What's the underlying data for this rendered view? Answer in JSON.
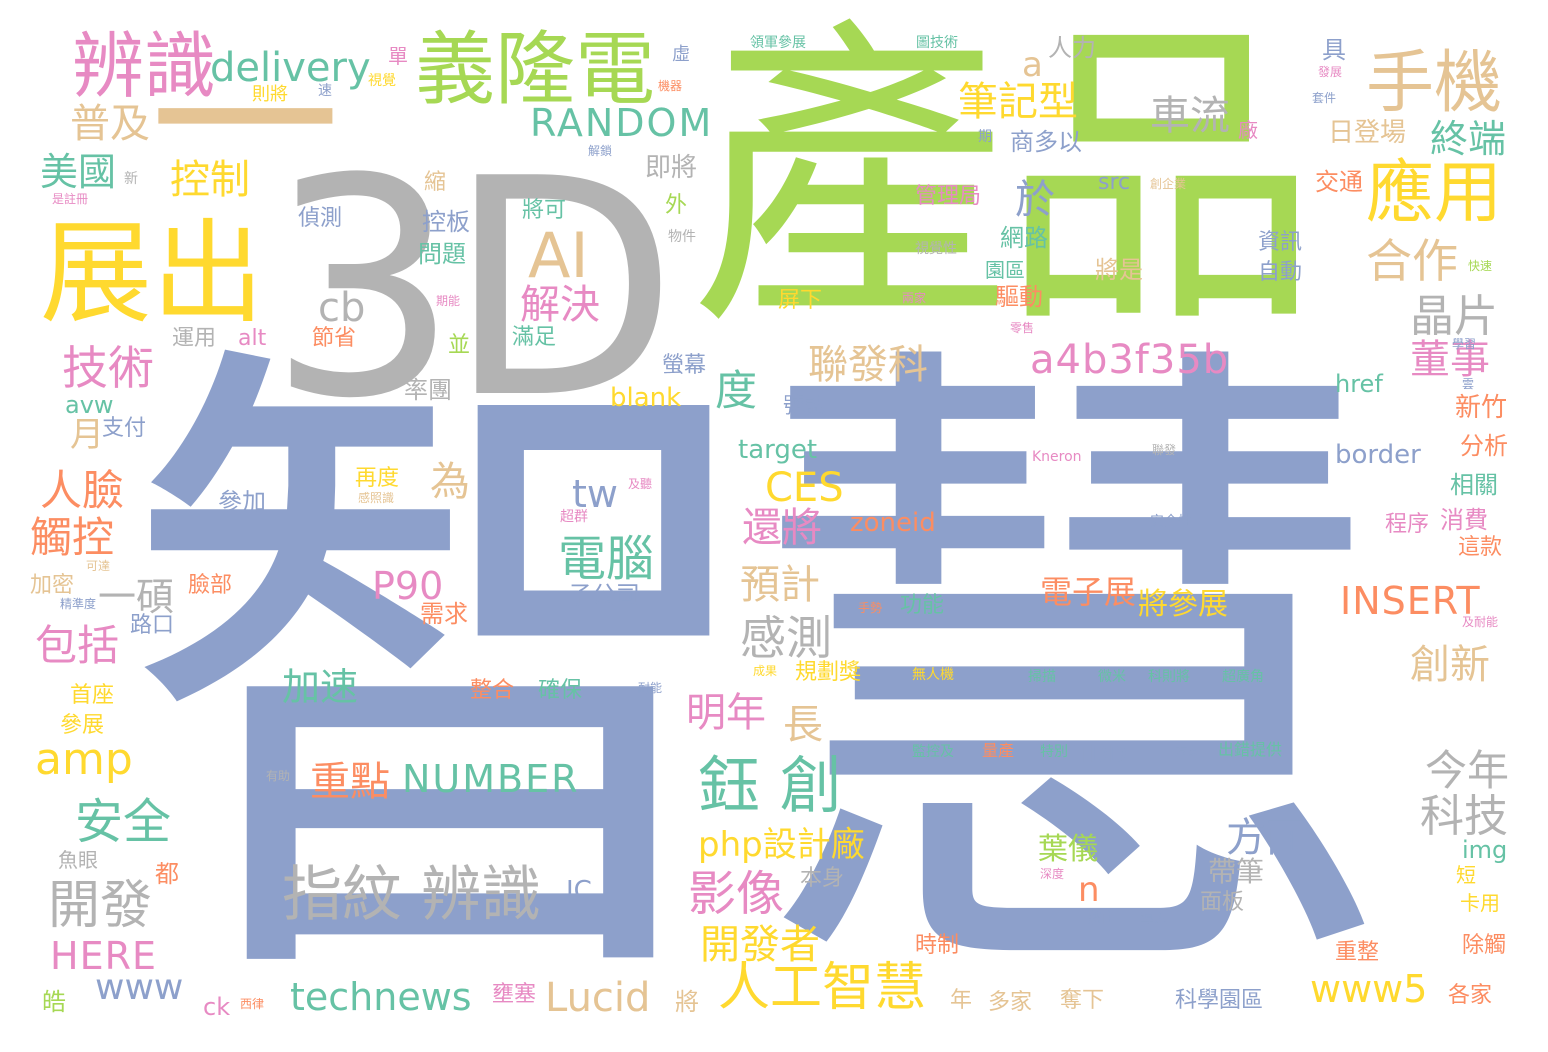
{
  "colors": {
    "slate": "#8da0cb",
    "green": "#a6d854",
    "orange": "#fc8d62",
    "pink": "#e78ac3",
    "yellow": "#ffd92f",
    "tan": "#e5c494",
    "teal": "#66c2a5",
    "gray": "#b3b3b3"
  },
  "words": [
    {
      "text": "智慧",
      "color": "slate"
    },
    {
      "text": "產品",
      "color": "green"
    },
    {
      "text": "3D",
      "color": "gray"
    },
    {
      "text": "一",
      "color": "tan"
    },
    {
      "text": "展出",
      "color": "yellow"
    },
    {
      "text": "義隆電",
      "color": "green"
    },
    {
      "text": "辨識",
      "color": "pink"
    },
    {
      "text": "手機",
      "color": "tan"
    },
    {
      "text": "應用",
      "color": "yellow"
    },
    {
      "text": "AI",
      "color": "tan"
    },
    {
      "text": "delivery",
      "color": "teal"
    },
    {
      "text": "RANDOM",
      "color": "teal"
    },
    {
      "text": "普及",
      "color": "tan"
    },
    {
      "text": "美國",
      "color": "teal"
    },
    {
      "text": "控制",
      "color": "yellow"
    },
    {
      "text": "技術",
      "color": "pink"
    },
    {
      "text": "筆記型",
      "color": "yellow"
    },
    {
      "text": "車流",
      "color": "gray"
    },
    {
      "text": "終端",
      "color": "teal"
    },
    {
      "text": "合作",
      "color": "tan"
    },
    {
      "text": "晶片",
      "color": "gray"
    },
    {
      "text": "cb",
      "color": "gray"
    },
    {
      "text": "於",
      "color": "slate"
    },
    {
      "text": "解決",
      "color": "pink"
    },
    {
      "text": "聯發科",
      "color": "tan"
    },
    {
      "text": "a4b3f35b",
      "color": "pink"
    },
    {
      "text": "董事",
      "color": "pink"
    },
    {
      "text": "度",
      "color": "teal"
    },
    {
      "text": "人臉",
      "color": "orange"
    },
    {
      "text": "觸控",
      "color": "orange"
    },
    {
      "text": "為",
      "color": "tan"
    },
    {
      "text": "CES",
      "color": "yellow"
    },
    {
      "text": "還將",
      "color": "pink"
    },
    {
      "text": "電腦",
      "color": "teal"
    },
    {
      "text": "tw",
      "color": "slate"
    },
    {
      "text": "預計",
      "color": "tan"
    },
    {
      "text": "P90",
      "color": "pink"
    },
    {
      "text": "一碩",
      "color": "gray"
    },
    {
      "text": "包括",
      "color": "pink"
    },
    {
      "text": "感測",
      "color": "gray"
    },
    {
      "text": "電子展",
      "color": "orange"
    },
    {
      "text": "將參展",
      "color": "yellow"
    },
    {
      "text": "INSERT",
      "color": "orange"
    },
    {
      "text": "加速",
      "color": "teal"
    },
    {
      "text": "創新",
      "color": "tan"
    },
    {
      "text": "明年",
      "color": "pink"
    },
    {
      "text": "amp",
      "color": "yellow"
    },
    {
      "text": "安全",
      "color": "teal"
    },
    {
      "text": "重點",
      "color": "orange"
    },
    {
      "text": "NUMBER",
      "color": "teal"
    },
    {
      "text": "鈺 創",
      "color": "teal"
    },
    {
      "text": "今年",
      "color": "gray"
    },
    {
      "text": "科技",
      "color": "gray"
    },
    {
      "text": "開發",
      "color": "gray"
    },
    {
      "text": "指紋 辨識",
      "color": "gray"
    },
    {
      "text": "php設計廠",
      "color": "yellow"
    },
    {
      "text": "影像",
      "color": "pink"
    },
    {
      "text": "方面",
      "color": "slate"
    },
    {
      "text": "HERE",
      "color": "pink"
    },
    {
      "text": "開發者",
      "color": "yellow"
    },
    {
      "text": "www",
      "color": "slate"
    },
    {
      "text": "technews",
      "color": "teal"
    },
    {
      "text": "Lucid",
      "color": "tan"
    },
    {
      "text": "人工智慧",
      "color": "yellow"
    },
    {
      "text": "www5",
      "color": "yellow"
    },
    {
      "text": "長",
      "color": "tan"
    },
    {
      "text": "月",
      "color": "tan"
    },
    {
      "text": "n",
      "color": "orange"
    },
    {
      "text": "葉儀",
      "color": "green"
    },
    {
      "text": "帶筆",
      "color": "gray"
    },
    {
      "text": "IC",
      "color": "slate"
    },
    {
      "text": "a",
      "color": "tan"
    },
    {
      "text": "blank",
      "color": "yellow"
    },
    {
      "text": "target",
      "color": "teal"
    },
    {
      "text": "zoneid",
      "color": "orange"
    },
    {
      "text": "border",
      "color": "slate"
    },
    {
      "text": "href",
      "color": "teal"
    },
    {
      "text": "TDDI",
      "color": "slate"
    },
    {
      "text": "avw",
      "color": "teal"
    },
    {
      "text": "alt",
      "color": "pink"
    },
    {
      "text": "src",
      "color": "slate"
    },
    {
      "text": "img",
      "color": "teal"
    },
    {
      "text": "ck",
      "color": "pink"
    },
    {
      "text": "人力",
      "color": "gray"
    },
    {
      "text": "具",
      "color": "slate"
    },
    {
      "text": "日登場",
      "color": "tan"
    },
    {
      "text": "交通",
      "color": "orange"
    },
    {
      "text": "新竹",
      "color": "orange"
    },
    {
      "text": "分析",
      "color": "orange"
    },
    {
      "text": "相關",
      "color": "teal"
    },
    {
      "text": "消費",
      "color": "pink"
    },
    {
      "text": "這款",
      "color": "orange"
    },
    {
      "text": "程序",
      "color": "pink"
    },
    {
      "text": "商多以",
      "color": "slate"
    },
    {
      "text": "即將",
      "color": "gray"
    },
    {
      "text": "偵測",
      "color": "slate"
    },
    {
      "text": "縮",
      "color": "tan"
    },
    {
      "text": "控板",
      "color": "slate"
    },
    {
      "text": "問題",
      "color": "teal"
    },
    {
      "text": "將可",
      "color": "teal"
    },
    {
      "text": "外",
      "color": "green"
    },
    {
      "text": "管理局",
      "color": "pink"
    },
    {
      "text": "網路",
      "color": "teal"
    },
    {
      "text": "園區",
      "color": "teal"
    },
    {
      "text": "驅動",
      "color": "orange"
    },
    {
      "text": "屏下",
      "color": "yellow"
    },
    {
      "text": "將是",
      "color": "tan"
    },
    {
      "text": "資訊",
      "color": "slate"
    },
    {
      "text": "自動",
      "color": "slate"
    },
    {
      "text": "滿足",
      "color": "teal"
    },
    {
      "text": "並",
      "color": "green"
    },
    {
      "text": "運用",
      "color": "gray"
    },
    {
      "text": "節省",
      "color": "orange"
    },
    {
      "text": "率團",
      "color": "gray"
    },
    {
      "text": "螢幕",
      "color": "slate"
    },
    {
      "text": "號誌",
      "color": "slate"
    },
    {
      "text": "支付",
      "color": "slate"
    },
    {
      "text": "再度",
      "color": "yellow"
    },
    {
      "text": "參加",
      "color": "slate"
    },
    {
      "text": "加密",
      "color": "tan"
    },
    {
      "text": "臉部",
      "color": "orange"
    },
    {
      "text": "路口",
      "color": "slate"
    },
    {
      "text": "需求",
      "color": "orange"
    },
    {
      "text": "子公司",
      "color": "slate"
    },
    {
      "text": "功能",
      "color": "teal"
    },
    {
      "text": "首座",
      "color": "yellow"
    },
    {
      "text": "參展",
      "color": "yellow"
    },
    {
      "text": "整合",
      "color": "orange"
    },
    {
      "text": "確保",
      "color": "teal"
    },
    {
      "text": "規劃獎",
      "color": "yellow"
    },
    {
      "text": "魚眼",
      "color": "gray"
    },
    {
      "text": "都",
      "color": "orange"
    },
    {
      "text": "本身",
      "color": "gray"
    },
    {
      "text": "時制",
      "color": "orange"
    },
    {
      "text": "面板",
      "color": "gray"
    },
    {
      "text": "重整",
      "color": "orange"
    },
    {
      "text": "除觸",
      "color": "orange"
    },
    {
      "text": "各家",
      "color": "orange"
    },
    {
      "text": "短",
      "color": "yellow"
    },
    {
      "text": "卡用",
      "color": "yellow"
    },
    {
      "text": "皓",
      "color": "green"
    },
    {
      "text": "將",
      "color": "tan"
    },
    {
      "text": "年",
      "color": "tan"
    },
    {
      "text": "多家",
      "color": "tan"
    },
    {
      "text": "奪下",
      "color": "tan"
    },
    {
      "text": "科學園區",
      "color": "slate"
    },
    {
      "text": "壅塞",
      "color": "pink"
    },
    {
      "text": "則將",
      "color": "yellow"
    },
    {
      "text": "單",
      "color": "pink"
    },
    {
      "text": "視覺",
      "color": "yellow"
    },
    {
      "text": "速",
      "color": "slate"
    },
    {
      "text": "領軍參展",
      "color": "teal"
    },
    {
      "text": "圖技術",
      "color": "teal"
    },
    {
      "text": "虛",
      "color": "slate"
    },
    {
      "text": "機器",
      "color": "orange"
    },
    {
      "text": "解鎖",
      "color": "slate"
    },
    {
      "text": "期",
      "color": "slate"
    },
    {
      "text": "廠",
      "color": "pink"
    },
    {
      "text": "發展",
      "color": "pink"
    },
    {
      "text": "套件",
      "color": "slate"
    },
    {
      "text": "創企業",
      "color": "tan"
    },
    {
      "text": "快速",
      "color": "green"
    },
    {
      "text": "物件",
      "color": "gray"
    },
    {
      "text": "視覺性",
      "color": "gray"
    },
    {
      "text": "兩家",
      "color": "pink"
    },
    {
      "text": "零售",
      "color": "pink"
    },
    {
      "text": "學習",
      "color": "slate"
    },
    {
      "text": "雲",
      "color": "slate"
    },
    {
      "text": "期能",
      "color": "pink"
    },
    {
      "text": "新",
      "color": "gray"
    },
    {
      "text": "是註冊",
      "color": "pink"
    },
    {
      "text": "可達",
      "color": "tan"
    },
    {
      "text": "精準度",
      "color": "slate"
    },
    {
      "text": "Kneron",
      "color": "pink"
    },
    {
      "text": "及聽",
      "color": "pink"
    },
    {
      "text": "超群",
      "color": "pink"
    },
    {
      "text": "感照識",
      "color": "tan"
    },
    {
      "text": "聯發",
      "color": "gray"
    },
    {
      "text": "安全性",
      "color": "slate"
    },
    {
      "text": "手勢",
      "color": "orange"
    },
    {
      "text": "及耐能",
      "color": "pink"
    },
    {
      "text": "成果",
      "color": "yellow"
    },
    {
      "text": "耐能",
      "color": "slate"
    },
    {
      "text": "無人機",
      "color": "yellow"
    },
    {
      "text": "掃描",
      "color": "teal"
    },
    {
      "text": "微米",
      "color": "teal"
    },
    {
      "text": "科則將",
      "color": "teal"
    },
    {
      "text": "超廣角",
      "color": "teal"
    },
    {
      "text": "監控及",
      "color": "teal"
    },
    {
      "text": "量產",
      "color": "orange"
    },
    {
      "text": "特別",
      "color": "teal"
    },
    {
      "text": "方案",
      "color": "slate"
    },
    {
      "text": "出錯提供",
      "color": "teal"
    },
    {
      "text": "有助",
      "color": "gray"
    },
    {
      "text": "深度",
      "color": "pink"
    },
    {
      "text": "將由",
      "color": "slate"
    },
    {
      "text": "導入",
      "color": "slate"
    },
    {
      "text": "西律",
      "color": "orange"
    }
  ]
}
